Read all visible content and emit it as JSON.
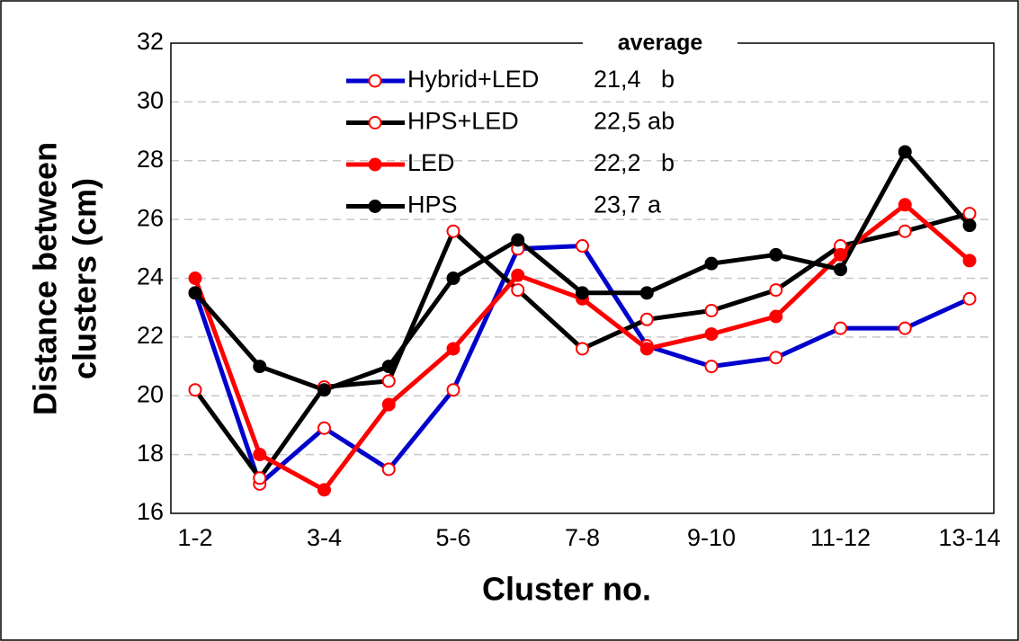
{
  "chart_data": {
    "type": "line",
    "x_label": "Cluster no.",
    "y_label_lines": [
      "Distance between",
      "clusters (cm)"
    ],
    "legend_title": "average",
    "categories": [
      "1-2",
      null,
      "3-4",
      null,
      "5-6",
      null,
      "7-8",
      null,
      "9-10",
      null,
      "11-12",
      null,
      "13-14"
    ],
    "series": [
      {
        "name": "Hybrid+LED",
        "color": "#0000cc",
        "marker": "open",
        "average": "21,4   b",
        "values": [
          23.5,
          17.0,
          18.9,
          17.5,
          20.2,
          25.0,
          25.1,
          21.7,
          21.0,
          21.3,
          22.3,
          22.3,
          23.3
        ]
      },
      {
        "name": "HPS+LED",
        "color": "#000000",
        "marker": "open",
        "average": "22,5 ab",
        "values": [
          20.2,
          17.2,
          20.3,
          20.5,
          25.6,
          23.6,
          21.6,
          22.6,
          22.9,
          23.6,
          25.1,
          25.6,
          26.2
        ]
      },
      {
        "name": "LED",
        "color": "#ff0000",
        "marker": "filled",
        "average": "22,2   b",
        "values": [
          24.0,
          18.0,
          16.8,
          19.7,
          21.6,
          24.1,
          23.3,
          21.6,
          22.1,
          22.7,
          24.8,
          26.5,
          24.6
        ]
      },
      {
        "name": "HPS",
        "color": "#000000",
        "marker": "filled",
        "average": "23,7 a",
        "values": [
          23.5,
          21.0,
          20.2,
          21.0,
          24.0,
          25.3,
          23.5,
          23.5,
          24.5,
          24.8,
          24.3,
          28.3,
          25.8
        ]
      }
    ],
    "ylim": [
      16,
      32
    ],
    "yticks": [
      16,
      18,
      20,
      22,
      24,
      26,
      28,
      30,
      32
    ],
    "grid": true
  }
}
